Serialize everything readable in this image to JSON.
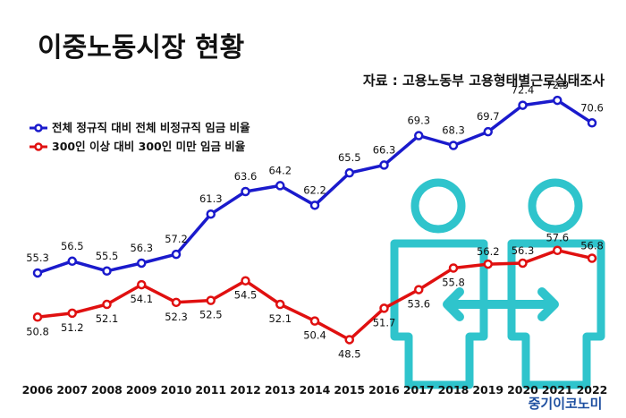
{
  "title": "이중노동시장 현황",
  "source": "자료 : 고용노동부 고용형태별근로실태조사",
  "brand": "중기이코노미",
  "colors": {
    "series1": "#1a1acc",
    "series2": "#e01010",
    "icon": "#2fc4cc"
  },
  "chart_data": {
    "type": "line",
    "x": [
      "2006",
      "2007",
      "2008",
      "2009",
      "2010",
      "2011",
      "2012",
      "2013",
      "2014",
      "2015",
      "2016",
      "2017",
      "2018",
      "2019",
      "2020",
      "2021",
      "2022"
    ],
    "ylim": [
      40,
      80
    ],
    "grid": false,
    "legend_position": "top-left",
    "series": [
      {
        "name": "전체 정규직 대비 전체 비정규직 임금 비율",
        "values": [
          55.3,
          56.5,
          55.5,
          56.3,
          57.2,
          61.3,
          63.6,
          64.2,
          62.2,
          65.5,
          66.3,
          69.3,
          68.3,
          69.7,
          72.4,
          72.9,
          70.6
        ]
      },
      {
        "name": "300인 이상 대비 300인 미만 임금 비율",
        "values": [
          50.8,
          51.2,
          52.1,
          54.1,
          52.3,
          52.5,
          54.5,
          52.1,
          50.4,
          48.5,
          51.7,
          53.6,
          55.8,
          56.2,
          56.3,
          57.6,
          56.8
        ]
      }
    ]
  }
}
